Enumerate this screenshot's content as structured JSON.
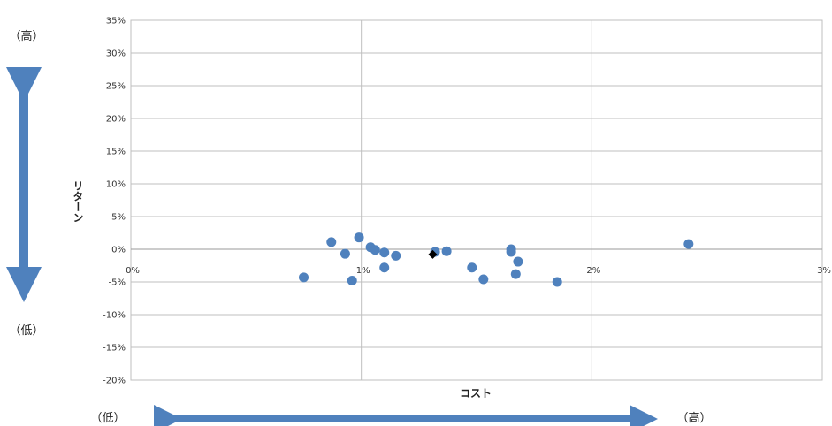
{
  "chart_data": {
    "type": "scatter",
    "title": "",
    "xlabel": "コスト",
    "ylabel": "リターン",
    "xlim": [
      0,
      3
    ],
    "ylim": [
      -20,
      35
    ],
    "x_ticks": [
      "0%",
      "1%",
      "2%",
      "3%"
    ],
    "y_ticks": [
      "35%",
      "30%",
      "25%",
      "20%",
      "15%",
      "10%",
      "5%",
      "0%",
      "-5%",
      "-10%",
      "-15%",
      "-20%"
    ],
    "grid": true,
    "colors": {
      "point": "#4f81bd",
      "highlight": "#000000",
      "arrow": "#4f81bd"
    },
    "series": [
      {
        "points": [
          {
            "x": 0.75,
            "y": -4.3
          },
          {
            "x": 0.87,
            "y": 1.1
          },
          {
            "x": 0.93,
            "y": -0.7
          },
          {
            "x": 0.96,
            "y": -4.8
          },
          {
            "x": 0.99,
            "y": 1.8
          },
          {
            "x": 1.04,
            "y": 0.3
          },
          {
            "x": 1.06,
            "y": -0.1
          },
          {
            "x": 1.1,
            "y": -0.5
          },
          {
            "x": 1.1,
            "y": -2.8
          },
          {
            "x": 1.15,
            "y": -1.0
          },
          {
            "x": 1.32,
            "y": -0.4
          },
          {
            "x": 1.37,
            "y": -0.3
          },
          {
            "x": 1.48,
            "y": -2.8
          },
          {
            "x": 1.53,
            "y": -4.6
          },
          {
            "x": 1.65,
            "y": 0.0
          },
          {
            "x": 1.65,
            "y": -0.4
          },
          {
            "x": 1.67,
            "y": -3.8
          },
          {
            "x": 1.68,
            "y": -1.9
          },
          {
            "x": 1.85,
            "y": -5.0
          },
          {
            "x": 2.42,
            "y": 0.8
          }
        ]
      },
      {
        "highlight": true,
        "points": [
          {
            "x": 1.31,
            "y": -0.8
          }
        ]
      }
    ]
  },
  "labels": {
    "y_high": "（高）",
    "y_low": "（低）",
    "x_low": "（低）",
    "x_high": "（高）"
  }
}
